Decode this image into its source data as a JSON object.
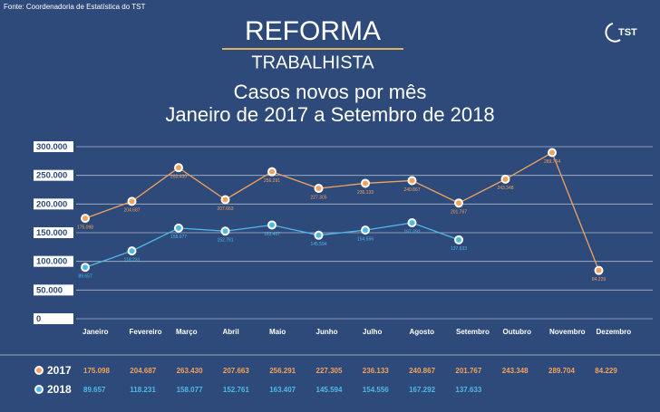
{
  "source": "Fonte: Coordenadoria de Estatística do TST",
  "header": {
    "title": "REFORMA",
    "subtitle": "TRABALHISTA",
    "logo": "TST"
  },
  "chart_data": {
    "type": "line",
    "title": "Casos novos por mês",
    "subtitle": "Janeiro de 2017 a Setembro de 2018",
    "categories": [
      "Janeiro",
      "Fevereiro",
      "Março",
      "Abril",
      "Maio",
      "Junho",
      "Julho",
      "Agosto",
      "Setembro",
      "Outubro",
      "Novembro",
      "Dezembro"
    ],
    "series": [
      {
        "name": "2017",
        "color": "#f0a35e",
        "values": [
          175098,
          204687,
          263430,
          207663,
          256291,
          227305,
          236133,
          240867,
          201767,
          243348,
          289704,
          84229
        ],
        "value_labels": [
          "175.098",
          "204.687",
          "263.430",
          "207.663",
          "256.291",
          "227.305",
          "236.133",
          "240.867",
          "201.767",
          "243.348",
          "289.704",
          "84.229"
        ]
      },
      {
        "name": "2018",
        "color": "#4fb8e8",
        "values": [
          89657,
          118231,
          158077,
          152761,
          163407,
          145594,
          154556,
          167292,
          137633,
          null,
          null,
          null
        ],
        "value_labels": [
          "89.657",
          "118.231",
          "158.077",
          "152.761",
          "163.407",
          "145.594",
          "154.556",
          "167.292",
          "137.633",
          null,
          null,
          null
        ]
      }
    ],
    "ylim": [
      0,
      300000
    ],
    "yticks": [
      0,
      {
        "value": 50000,
        "label": "50.000"
      },
      {
        "value": 100000,
        "label": "100.000"
      },
      {
        "value": 150000,
        "label": "150.000"
      },
      {
        "value": 200000,
        "label": "200.000"
      },
      {
        "value": 250000,
        "label": "250.000"
      },
      {
        "value": 300000,
        "label": "300.000"
      }
    ],
    "grid": true
  }
}
